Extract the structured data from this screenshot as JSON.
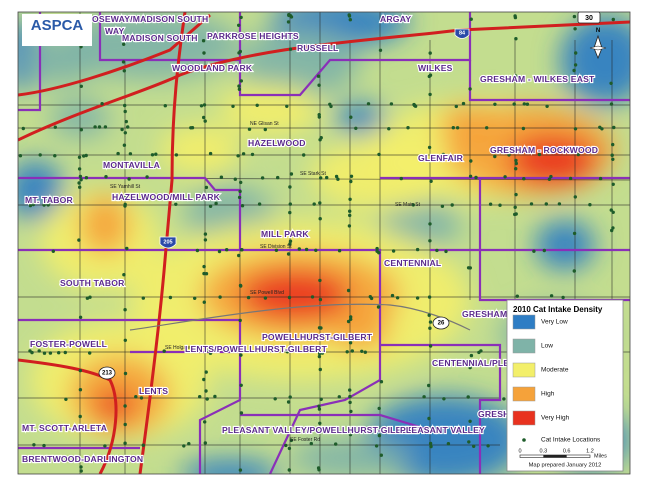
{
  "header": {
    "logo": "ASPCA"
  },
  "neighborhoods": [
    "OSEWAY/MADISON SOUTH",
    "WAY",
    "MADISON SOUTH",
    "PARKROSE HEIGHTS",
    "ARGAY",
    "RUSSELL",
    "WOODLAND PARK",
    "WILKES",
    "GRESHAM - WILKES EAST",
    "HAZELWOOD",
    "GLENFAIR",
    "GRESHAM - ROCKWOOD",
    "MONTAVILLA",
    "HAZELWOOD/MILL PARK",
    "MT. TABOR",
    "MILL PARK",
    "CENTENNIAL",
    "SOUTH TABOR",
    "GRESHAM",
    "POWELLHURST-GILBERT",
    "LENTS/POWELLHURST-GILBERT",
    "FOSTER-POWELL",
    "CENTENNIAL/PLEA",
    "LENTS",
    "GRESH",
    "MT. SCOTT-ARLETA",
    "PLEASANT VALLEY/POWELLHURST-GILBERT",
    "PLEASANT VALLEY",
    "BRENTWOOD-DARLINGTON"
  ],
  "streets": [
    "SE Stark St",
    "SE Division St",
    "SE Powell Blvd",
    "SE Foster Rd",
    "SE Holgate Blvd",
    "NE Glisan St",
    "SE Yamhill St",
    "SE Main St"
  ],
  "highways": [
    "30",
    "84",
    "205",
    "213",
    "26"
  ],
  "compass": "N",
  "legend": {
    "title": "2010 Cat Intake Density",
    "classes": [
      {
        "label": "Very Low",
        "color": "#2e7dc4"
      },
      {
        "label": "Low",
        "color": "#7fb3a8"
      },
      {
        "label": "Moderate",
        "color": "#f3ef6a"
      },
      {
        "label": "High",
        "color": "#f5a23a"
      },
      {
        "label": "Very High",
        "color": "#e8321f"
      }
    ],
    "points": "Cat Intake Locations",
    "scale": [
      "0",
      "0.3",
      "0.6",
      "1.2"
    ],
    "unit": "Miles",
    "note": "Map prepared January 2012"
  }
}
